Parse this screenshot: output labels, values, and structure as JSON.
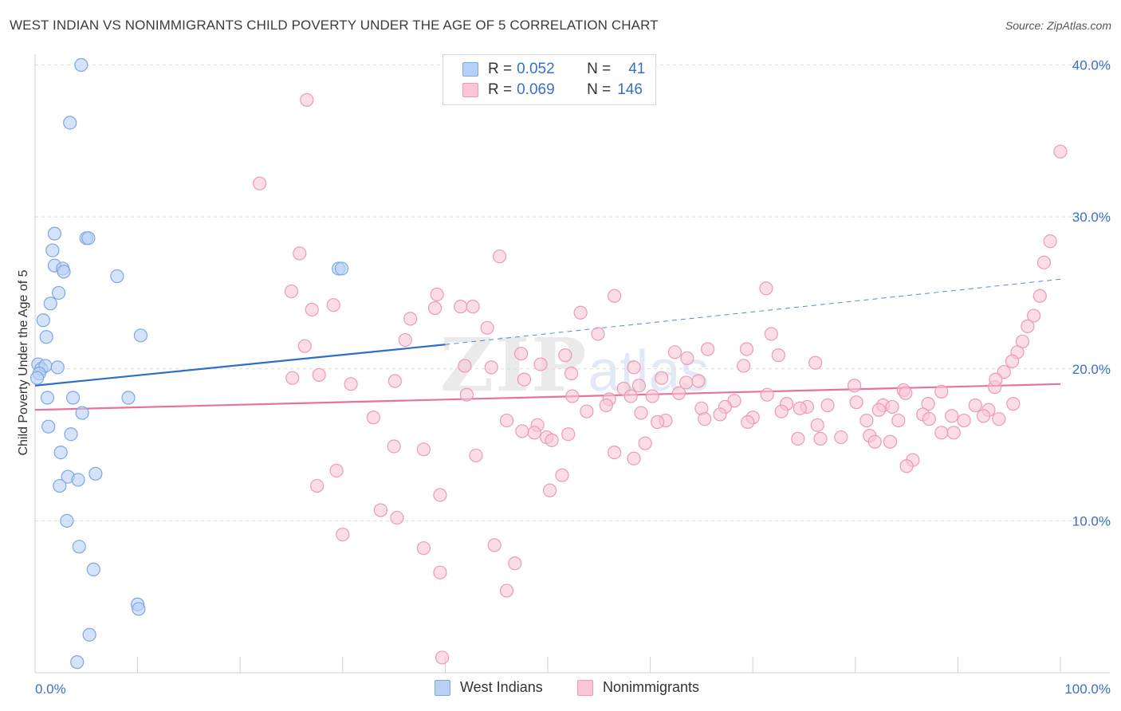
{
  "header": {
    "title": "WEST INDIAN VS NONIMMIGRANTS CHILD POVERTY UNDER THE AGE OF 5 CORRELATION CHART",
    "source": "Source: ZipAtlas.com"
  },
  "watermark": {
    "zip": "ZIP",
    "atlas": "atlas"
  },
  "legend": {
    "rows": [
      {
        "r_label": "R =",
        "r_value": "0.052",
        "n_label": "N =",
        "n_value": "41"
      },
      {
        "r_label": "R =",
        "r_value": "0.069",
        "n_label": "N =",
        "n_value": "146"
      }
    ]
  },
  "colors": {
    "west_indians_fill": "#b7d1f5",
    "west_indians_stroke": "#7ea7e0",
    "west_indians_line": "#2f6ec8",
    "nonimmigrants_fill": "#f8c6d6",
    "nonimmigrants_stroke": "#ec9ab6",
    "nonimmigrants_line": "#e8729a",
    "tick_text": "#3a6fc4",
    "grid": "#dcdcdc"
  },
  "chart_data": {
    "type": "scatter",
    "xlabel": "",
    "ylabel": "Child Poverty Under the Age of 5",
    "xlim": [
      0,
      100
    ],
    "ylim": [
      0,
      40.5
    ],
    "x_tick_labels": [
      {
        "value": 0,
        "label": "0.0%"
      },
      {
        "value": 100,
        "label": "100.0%"
      }
    ],
    "y_tick_labels": [
      {
        "value": 10,
        "label": "10.0%"
      },
      {
        "value": 20,
        "label": "20.0%"
      },
      {
        "value": 30,
        "label": "30.0%"
      },
      {
        "value": 40,
        "label": "40.0%"
      }
    ],
    "y_gridlines": [
      10,
      20,
      30,
      40
    ],
    "x_minor_ticks": [
      0,
      10,
      20,
      30,
      40,
      50,
      60,
      70,
      80,
      90,
      100
    ],
    "legend_position": "top-center",
    "series": [
      {
        "name": "West Indians",
        "trend": {
          "x0": 0,
          "y0": 18.9,
          "x1": 40,
          "y1": 21.6,
          "dash_to_x": 100,
          "dash_to_y": 25.9
        },
        "points": [
          [
            4.5,
            40.0
          ],
          [
            3.4,
            36.2
          ],
          [
            1.9,
            28.9
          ],
          [
            5.0,
            28.6
          ],
          [
            5.2,
            28.6
          ],
          [
            1.7,
            27.8
          ],
          [
            1.9,
            26.8
          ],
          [
            2.7,
            26.6
          ],
          [
            2.8,
            26.4
          ],
          [
            8.0,
            26.1
          ],
          [
            29.6,
            26.6
          ],
          [
            29.9,
            26.6
          ],
          [
            2.3,
            25.0
          ],
          [
            1.5,
            24.3
          ],
          [
            0.8,
            23.2
          ],
          [
            1.1,
            22.1
          ],
          [
            10.3,
            22.2
          ],
          [
            0.3,
            20.3
          ],
          [
            0.6,
            20.0
          ],
          [
            1.0,
            20.2
          ],
          [
            2.2,
            20.1
          ],
          [
            0.4,
            19.7
          ],
          [
            0.2,
            19.4
          ],
          [
            1.2,
            18.1
          ],
          [
            3.7,
            18.1
          ],
          [
            9.1,
            18.1
          ],
          [
            4.6,
            17.1
          ],
          [
            1.3,
            16.2
          ],
          [
            3.5,
            15.7
          ],
          [
            2.5,
            14.5
          ],
          [
            5.9,
            13.1
          ],
          [
            3.2,
            12.9
          ],
          [
            4.2,
            12.7
          ],
          [
            2.4,
            12.3
          ],
          [
            3.1,
            10.0
          ],
          [
            4.3,
            8.3
          ],
          [
            5.7,
            6.8
          ],
          [
            10.0,
            4.5
          ],
          [
            10.1,
            4.2
          ],
          [
            5.3,
            2.5
          ],
          [
            4.1,
            0.7
          ]
        ]
      },
      {
        "name": "Nonimmigrants",
        "trend": {
          "x0": 0,
          "y0": 17.3,
          "x1": 100,
          "y1": 19.0
        },
        "points": [
          [
            26.5,
            37.7
          ],
          [
            21.9,
            32.2
          ],
          [
            25.8,
            27.6
          ],
          [
            45.3,
            27.4
          ],
          [
            25.0,
            25.1
          ],
          [
            71.3,
            25.3
          ],
          [
            39.2,
            24.9
          ],
          [
            56.5,
            24.8
          ],
          [
            39.0,
            24.0
          ],
          [
            41.5,
            24.1
          ],
          [
            42.7,
            24.1
          ],
          [
            29.1,
            24.2
          ],
          [
            27.0,
            23.9
          ],
          [
            53.2,
            23.7
          ],
          [
            36.6,
            23.3
          ],
          [
            44.1,
            22.7
          ],
          [
            71.8,
            22.3
          ],
          [
            54.9,
            22.3
          ],
          [
            36.1,
            21.9
          ],
          [
            26.3,
            21.5
          ],
          [
            65.6,
            21.3
          ],
          [
            69.4,
            21.3
          ],
          [
            62.4,
            21.1
          ],
          [
            47.4,
            21.0
          ],
          [
            72.5,
            20.9
          ],
          [
            51.7,
            20.9
          ],
          [
            63.6,
            20.7
          ],
          [
            76.1,
            20.4
          ],
          [
            41.9,
            20.2
          ],
          [
            49.3,
            20.3
          ],
          [
            58.4,
            20.1
          ],
          [
            44.5,
            20.1
          ],
          [
            69.1,
            20.2
          ],
          [
            27.7,
            19.6
          ],
          [
            52.3,
            19.7
          ],
          [
            25.1,
            19.4
          ],
          [
            47.7,
            19.3
          ],
          [
            61.1,
            19.4
          ],
          [
            35.1,
            19.2
          ],
          [
            30.8,
            19.0
          ],
          [
            57.4,
            18.7
          ],
          [
            63.5,
            19.1
          ],
          [
            64.7,
            19.2
          ],
          [
            58.9,
            18.9
          ],
          [
            79.9,
            18.9
          ],
          [
            84.7,
            18.6
          ],
          [
            84.9,
            18.4
          ],
          [
            88.4,
            18.5
          ],
          [
            93.6,
            18.8
          ],
          [
            42.1,
            18.3
          ],
          [
            58.1,
            18.2
          ],
          [
            60.2,
            18.2
          ],
          [
            62.8,
            18.4
          ],
          [
            68.2,
            17.9
          ],
          [
            71.4,
            18.3
          ],
          [
            80.1,
            17.8
          ],
          [
            52.4,
            18.2
          ],
          [
            56.0,
            18.0
          ],
          [
            67.3,
            17.5
          ],
          [
            73.3,
            17.7
          ],
          [
            75.3,
            17.5
          ],
          [
            77.3,
            17.6
          ],
          [
            82.7,
            17.6
          ],
          [
            83.6,
            17.5
          ],
          [
            87.1,
            17.7
          ],
          [
            91.7,
            17.6
          ],
          [
            93.0,
            17.3
          ],
          [
            95.4,
            17.7
          ],
          [
            55.7,
            17.6
          ],
          [
            65.0,
            17.4
          ],
          [
            74.6,
            17.4
          ],
          [
            82.3,
            17.3
          ],
          [
            86.6,
            17.0
          ],
          [
            89.4,
            16.9
          ],
          [
            53.8,
            17.2
          ],
          [
            59.1,
            17.1
          ],
          [
            66.8,
            17.0
          ],
          [
            70.0,
            16.8
          ],
          [
            72.8,
            17.2
          ],
          [
            81.1,
            16.6
          ],
          [
            87.2,
            16.7
          ],
          [
            90.6,
            16.6
          ],
          [
            92.5,
            16.9
          ],
          [
            33.0,
            16.8
          ],
          [
            46.0,
            16.6
          ],
          [
            61.5,
            16.6
          ],
          [
            60.7,
            16.5
          ],
          [
            65.3,
            16.7
          ],
          [
            69.5,
            16.5
          ],
          [
            76.3,
            16.3
          ],
          [
            84.2,
            16.6
          ],
          [
            94.0,
            16.7
          ],
          [
            49.0,
            16.3
          ],
          [
            47.5,
            15.9
          ],
          [
            48.7,
            15.8
          ],
          [
            52.0,
            15.7
          ],
          [
            76.6,
            15.4
          ],
          [
            78.6,
            15.5
          ],
          [
            81.4,
            15.6
          ],
          [
            88.4,
            15.8
          ],
          [
            89.6,
            15.8
          ],
          [
            74.4,
            15.4
          ],
          [
            49.9,
            15.5
          ],
          [
            50.4,
            15.3
          ],
          [
            81.9,
            15.2
          ],
          [
            83.4,
            15.2
          ],
          [
            59.5,
            15.1
          ],
          [
            35.0,
            14.9
          ],
          [
            37.9,
            14.7
          ],
          [
            56.5,
            14.5
          ],
          [
            43.0,
            14.3
          ],
          [
            58.4,
            14.1
          ],
          [
            85.6,
            14.0
          ],
          [
            85.0,
            13.6
          ],
          [
            29.4,
            13.3
          ],
          [
            51.4,
            13.0
          ],
          [
            27.5,
            12.3
          ],
          [
            50.2,
            12.0
          ],
          [
            39.5,
            11.7
          ],
          [
            33.7,
            10.7
          ],
          [
            35.3,
            10.2
          ],
          [
            30.0,
            9.1
          ],
          [
            44.8,
            8.4
          ],
          [
            37.9,
            8.2
          ],
          [
            39.5,
            6.6
          ],
          [
            46.8,
            7.2
          ],
          [
            46.0,
            5.4
          ],
          [
            39.7,
            1.0
          ],
          [
            100.0,
            34.3
          ],
          [
            99.0,
            28.4
          ],
          [
            98.4,
            27.0
          ],
          [
            98.0,
            24.8
          ],
          [
            97.4,
            23.5
          ],
          [
            96.8,
            22.8
          ],
          [
            96.3,
            21.8
          ],
          [
            95.8,
            21.1
          ],
          [
            95.3,
            20.5
          ],
          [
            94.5,
            19.8
          ],
          [
            93.7,
            19.3
          ]
        ]
      }
    ]
  },
  "bottom_legend": {
    "items": [
      "West Indians",
      "Nonimmigrants"
    ]
  }
}
